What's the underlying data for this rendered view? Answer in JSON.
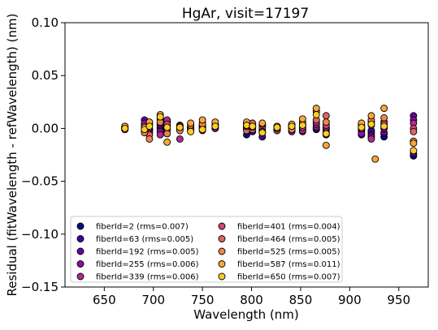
{
  "chart_data": {
    "type": "scatter",
    "title": "HgAr, visit=17197",
    "xlabel": "Wavelength (nm)",
    "ylabel": "Residual (fitWavelength - refWavelength) (nm)",
    "xlim": [
      610,
      980
    ],
    "ylim": [
      -0.15,
      0.1
    ],
    "xticks": [
      650,
      700,
      750,
      800,
      850,
      900,
      950
    ],
    "yticks": [
      0.1,
      0.05,
      0.0,
      -0.05,
      -0.1,
      -0.15
    ],
    "ytick_labels": [
      "0.10",
      "0.05",
      "0.00",
      "−0.05",
      "−0.10",
      "−0.15"
    ],
    "grid": false,
    "legend_position": "lower-left",
    "legend_columns": 2,
    "series": [
      {
        "name": "fiberId=2 (rms=0.007)",
        "color": "#0d0887",
        "points": [
          [
            671,
            0.0
          ],
          [
            691,
            0.002
          ],
          [
            696,
            -0.002
          ],
          [
            707,
            0.001
          ],
          [
            714,
            0.002
          ],
          [
            727,
            -0.001
          ],
          [
            738,
            0.0
          ],
          [
            750,
            0.0
          ],
          [
            763,
            0.002
          ],
          [
            795,
            -0.006
          ],
          [
            801,
            0.0
          ],
          [
            811,
            -0.004
          ],
          [
            826,
            -0.002
          ],
          [
            841,
            -0.002
          ],
          [
            852,
            0.0
          ],
          [
            866,
            -0.001
          ],
          [
            876,
            -0.004
          ],
          [
            912,
            -0.006
          ],
          [
            922,
            -0.004
          ],
          [
            935,
            -0.008
          ],
          [
            965,
            -0.026
          ]
        ]
      },
      {
        "name": "fiberId=63 (rms=0.005)",
        "color": "#41049d",
        "points": [
          [
            671,
            0.001
          ],
          [
            691,
            0.004
          ],
          [
            696,
            -0.001
          ],
          [
            707,
            0.0
          ],
          [
            714,
            -0.002
          ],
          [
            727,
            0.0
          ],
          [
            738,
            0.001
          ],
          [
            750,
            0.002
          ],
          [
            763,
            0.0
          ],
          [
            795,
            0.003
          ],
          [
            801,
            -0.003
          ],
          [
            811,
            -0.008
          ],
          [
            826,
            0.0
          ],
          [
            841,
            0.0
          ],
          [
            852,
            -0.003
          ],
          [
            866,
            0.0
          ],
          [
            876,
            -0.006
          ],
          [
            912,
            -0.003
          ],
          [
            922,
            -0.002
          ],
          [
            935,
            -0.005
          ],
          [
            965,
            -0.024
          ]
        ]
      },
      {
        "name": "fiberId=192 (rms=0.005)",
        "color": "#6a00a8",
        "points": [
          [
            671,
            0.0
          ],
          [
            691,
            0.008
          ],
          [
            696,
            -0.004
          ],
          [
            707,
            0.003
          ],
          [
            714,
            0.003
          ],
          [
            727,
            0.002
          ],
          [
            738,
            -0.002
          ],
          [
            750,
            0.001
          ],
          [
            763,
            0.001
          ],
          [
            795,
            0.002
          ],
          [
            801,
            0.003
          ],
          [
            811,
            -0.001
          ],
          [
            826,
            -0.001
          ],
          [
            841,
            0.002
          ],
          [
            852,
            -0.001
          ],
          [
            866,
            0.001
          ],
          [
            876,
            -0.001
          ],
          [
            912,
            -0.001
          ],
          [
            922,
            -0.006
          ],
          [
            935,
            -0.004
          ],
          [
            965,
            0.012
          ]
        ]
      },
      {
        "name": "fiberId=255 (rms=0.006)",
        "color": "#8f0da4",
        "points": [
          [
            671,
            -0.001
          ],
          [
            691,
            0.005
          ],
          [
            696,
            0.0
          ],
          [
            707,
            -0.003
          ],
          [
            714,
            0.006
          ],
          [
            727,
            0.003
          ],
          [
            738,
            0.0
          ],
          [
            750,
            0.002
          ],
          [
            763,
            0.0
          ],
          [
            795,
            0.004
          ],
          [
            801,
            0.001
          ],
          [
            811,
            0.002
          ],
          [
            826,
            0.001
          ],
          [
            841,
            -0.003
          ],
          [
            852,
            0.002
          ],
          [
            866,
            0.001
          ],
          [
            876,
            0.0
          ],
          [
            912,
            -0.005
          ],
          [
            922,
            -0.008
          ],
          [
            935,
            0.0
          ],
          [
            965,
            0.008
          ]
        ]
      },
      {
        "name": "fiberId=339 (rms=0.006)",
        "color": "#b12a90",
        "points": [
          [
            671,
            0.001
          ],
          [
            691,
            0.0
          ],
          [
            696,
            0.003
          ],
          [
            707,
            -0.006
          ],
          [
            714,
            0.008
          ],
          [
            727,
            -0.01
          ],
          [
            738,
            0.002
          ],
          [
            750,
            -0.002
          ],
          [
            763,
            0.003
          ],
          [
            795,
            0.001
          ],
          [
            801,
            0.004
          ],
          [
            811,
            0.003
          ],
          [
            826,
            0.002
          ],
          [
            841,
            0.003
          ],
          [
            852,
            -0.002
          ],
          [
            866,
            0.004
          ],
          [
            876,
            0.001
          ],
          [
            912,
            0.001
          ],
          [
            922,
            -0.01
          ],
          [
            935,
            0.002
          ],
          [
            965,
            0.005
          ]
        ]
      },
      {
        "name": "fiberId=401 (rms=0.004)",
        "color": "#cc4778",
        "points": [
          [
            671,
            0.002
          ],
          [
            691,
            -0.003
          ],
          [
            696,
            0.005
          ],
          [
            707,
            0.009
          ],
          [
            714,
            0.004
          ],
          [
            727,
            0.0
          ],
          [
            738,
            0.001
          ],
          [
            750,
            0.003
          ],
          [
            763,
            0.004
          ],
          [
            795,
            0.0
          ],
          [
            801,
            0.002
          ],
          [
            811,
            0.001
          ],
          [
            826,
            -0.002
          ],
          [
            841,
            0.001
          ],
          [
            852,
            0.001
          ],
          [
            866,
            0.006
          ],
          [
            876,
            0.003
          ],
          [
            912,
            0.002
          ],
          [
            922,
            0.003
          ],
          [
            935,
            0.006
          ],
          [
            965,
            0.0
          ]
        ]
      },
      {
        "name": "fiberId=464 (rms=0.005)",
        "color": "#e16462",
        "points": [
          [
            671,
            -0.001
          ],
          [
            691,
            -0.002
          ],
          [
            696,
            -0.006
          ],
          [
            707,
            0.005
          ],
          [
            714,
            -0.001
          ],
          [
            727,
            0.002
          ],
          [
            738,
            -0.001
          ],
          [
            750,
            0.005
          ],
          [
            763,
            0.003
          ],
          [
            795,
            -0.002
          ],
          [
            801,
            0.005
          ],
          [
            811,
            -0.003
          ],
          [
            826,
            0.0
          ],
          [
            841,
            0.002
          ],
          [
            852,
            0.004
          ],
          [
            866,
            0.008
          ],
          [
            876,
            0.012
          ],
          [
            912,
            0.004
          ],
          [
            922,
            0.006
          ],
          [
            935,
            0.004
          ],
          [
            965,
            -0.003
          ]
        ]
      },
      {
        "name": "fiberId=525 (rms=0.005)",
        "color": "#f2844b",
        "points": [
          [
            671,
            0.001
          ],
          [
            691,
            -0.004
          ],
          [
            696,
            -0.01
          ],
          [
            707,
            0.006
          ],
          [
            714,
            -0.005
          ],
          [
            727,
            -0.002
          ],
          [
            738,
            0.003
          ],
          [
            750,
            0.004
          ],
          [
            763,
            0.002
          ],
          [
            795,
            0.002
          ],
          [
            801,
            -0.001
          ],
          [
            811,
            0.004
          ],
          [
            826,
            0.001
          ],
          [
            841,
            -0.001
          ],
          [
            852,
            0.006
          ],
          [
            866,
            0.016
          ],
          [
            876,
            0.006
          ],
          [
            912,
            0.0
          ],
          [
            922,
            0.008
          ],
          [
            935,
            0.01
          ],
          [
            965,
            -0.012
          ]
        ]
      },
      {
        "name": "fiberId=587 (rms=0.011)",
        "color": "#fca636",
        "points": [
          [
            671,
            0.002
          ],
          [
            691,
            0.001
          ],
          [
            696,
            0.006
          ],
          [
            707,
            0.013
          ],
          [
            714,
            -0.013
          ],
          [
            727,
            0.001
          ],
          [
            738,
            0.005
          ],
          [
            750,
            0.008
          ],
          [
            763,
            0.006
          ],
          [
            795,
            0.006
          ],
          [
            801,
            0.001
          ],
          [
            811,
            0.005
          ],
          [
            826,
            0.002
          ],
          [
            841,
            0.004
          ],
          [
            852,
            0.009
          ],
          [
            866,
            0.019
          ],
          [
            876,
            -0.016
          ],
          [
            912,
            0.005
          ],
          [
            922,
            0.012
          ],
          [
            935,
            0.019
          ],
          [
            965,
            -0.014
          ]
        ]
      },
      {
        "name": "fiberId=650 (rms=0.007)",
        "color": "#fcce25",
        "points": [
          [
            671,
            0.0
          ],
          [
            691,
            -0.001
          ],
          [
            696,
            0.002
          ],
          [
            707,
            0.011
          ],
          [
            714,
            0.001
          ],
          [
            727,
            0.001
          ],
          [
            738,
            -0.003
          ],
          [
            750,
            -0.001
          ],
          [
            763,
            0.002
          ],
          [
            795,
            0.003
          ],
          [
            801,
            0.002
          ],
          [
            811,
            -0.004
          ],
          [
            826,
            0.001
          ],
          [
            841,
            0.002
          ],
          [
            852,
            0.003
          ],
          [
            866,
            0.013
          ],
          [
            876,
            -0.005
          ],
          [
            912,
            0.001
          ],
          [
            922,
            0.004
          ],
          [
            935,
            0.002
          ],
          [
            965,
            -0.021
          ]
        ]
      }
    ],
    "outliers": [
      {
        "name": "fiberId=587 (rms=0.011)",
        "point": [
          926,
          -0.029
        ]
      }
    ]
  }
}
